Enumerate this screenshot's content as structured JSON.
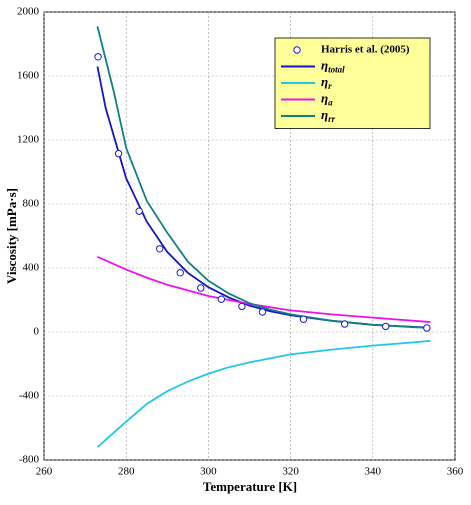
{
  "chart_data": {
    "type": "line",
    "xlabel": "Temperature [K]",
    "ylabel": "Viscosity [mPa·s]",
    "xlim": [
      260,
      360
    ],
    "xticks": [
      260,
      280,
      300,
      320,
      340,
      360
    ],
    "ylim": [
      -800,
      2000
    ],
    "yticks": [
      -800,
      -400,
      0,
      400,
      800,
      1200,
      1600,
      2000
    ],
    "grid": true,
    "legend": "upper right",
    "series": [
      {
        "name": "Harris et al. (2005)",
        "type": "scatter",
        "color": "#1a1ad0",
        "x": [
          273.15,
          278.15,
          283.15,
          288.15,
          293.15,
          298.15,
          303.15,
          308.15,
          313.15,
          323.15,
          333.15,
          343.15,
          353.15
        ],
        "values": [
          1720,
          1115,
          755,
          520,
          370,
          275,
          205,
          160,
          125,
          80,
          50,
          35,
          25
        ]
      },
      {
        "name": "ηtotal",
        "type": "line",
        "color": "#1414c8",
        "x": [
          273,
          275,
          280,
          285,
          290,
          295,
          300,
          305,
          310,
          315,
          320,
          330,
          340,
          350,
          354
        ],
        "values": [
          1660,
          1400,
          960,
          690,
          500,
          370,
          280,
          215,
          165,
          130,
          105,
          70,
          45,
          32,
          28
        ]
      },
      {
        "name": "ηr",
        "type": "line",
        "color": "#1ec8e6",
        "x": [
          273,
          280,
          285,
          290,
          295,
          300,
          305,
          310,
          315,
          320,
          330,
          340,
          350,
          354
        ],
        "values": [
          -720,
          -560,
          -450,
          -370,
          -310,
          -260,
          -220,
          -190,
          -165,
          -140,
          -110,
          -85,
          -65,
          -55
        ]
      },
      {
        "name": "ηa",
        "type": "line",
        "color": "#ee11ee",
        "x": [
          273,
          280,
          285,
          290,
          295,
          300,
          305,
          310,
          315,
          320,
          330,
          340,
          350,
          354
        ],
        "values": [
          470,
          390,
          340,
          295,
          260,
          225,
          200,
          175,
          155,
          135,
          110,
          90,
          70,
          62
        ]
      },
      {
        "name": "ηrr",
        "type": "line",
        "color": "#108080",
        "x": [
          273,
          277,
          280,
          285,
          290,
          295,
          300,
          305,
          310,
          315,
          320,
          330,
          340,
          350,
          354
        ],
        "values": [
          1910,
          1500,
          1150,
          820,
          620,
          440,
          320,
          240,
          180,
          140,
          110,
          70,
          45,
          30,
          26
        ]
      }
    ]
  }
}
